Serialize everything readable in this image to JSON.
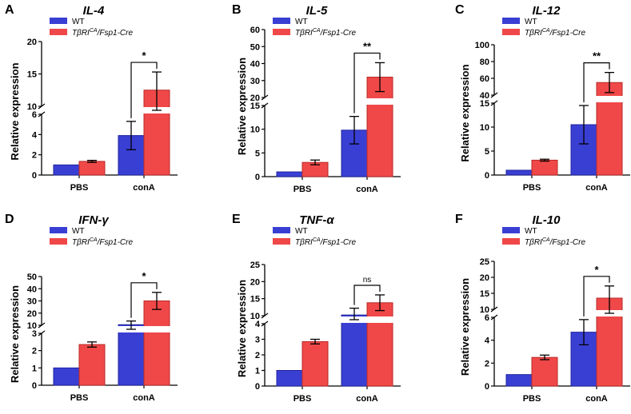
{
  "colors": {
    "wt": "#3a3fd4",
    "cre": "#f04848",
    "edge_wt": "#1f239c",
    "edge_cre": "#b82a2a"
  },
  "legend": {
    "wt_label": "WT",
    "cre_prefix": "TβRI",
    "cre_super": "CA",
    "cre_suffix": "/Fsp1-Cre"
  },
  "y_axis_label": "Relative expression",
  "chart_data": [
    {
      "panel": "A",
      "title": "IL-4",
      "type": "bar",
      "categories": [
        "PBS",
        "conA"
      ],
      "series": [
        {
          "name": "WT",
          "values": [
            1.0,
            3.9
          ],
          "errors": [
            0,
            1.4
          ]
        },
        {
          "name": "TβRICA/Fsp1-Cre",
          "values": [
            1.35,
            12.5
          ],
          "errors": [
            0.1,
            2.8
          ]
        }
      ],
      "ylabel": "Relative expression",
      "y_segments": [
        {
          "range": [
            0,
            6
          ],
          "ticks": [
            0,
            2,
            4,
            6
          ]
        },
        {
          "range": [
            10,
            20
          ],
          "ticks": [
            10,
            15,
            20
          ]
        }
      ],
      "significance": {
        "label": "*",
        "between": "conA WT vs Cre"
      }
    },
    {
      "panel": "B",
      "title": "IL-5",
      "type": "bar",
      "categories": [
        "PBS",
        "conA"
      ],
      "series": [
        {
          "name": "WT",
          "values": [
            1.0,
            9.8
          ],
          "errors": [
            0,
            2.9
          ]
        },
        {
          "name": "TβRICA/Fsp1-Cre",
          "values": [
            3.0,
            32
          ],
          "errors": [
            0.5,
            8.5
          ]
        }
      ],
      "ylabel": "Relative expression",
      "y_segments": [
        {
          "range": [
            0,
            15
          ],
          "ticks": [
            0,
            5,
            10,
            15
          ]
        },
        {
          "range": [
            20,
            60
          ],
          "ticks": [
            20,
            30,
            40,
            50,
            60
          ]
        }
      ],
      "significance": {
        "label": "**",
        "between": "conA WT vs Cre"
      }
    },
    {
      "panel": "C",
      "title": "IL-12",
      "type": "bar",
      "categories": [
        "PBS",
        "conA"
      ],
      "series": [
        {
          "name": "WT",
          "values": [
            1.0,
            10.5
          ],
          "errors": [
            0,
            4.0
          ]
        },
        {
          "name": "TβRICA/Fsp1-Cre",
          "values": [
            3.1,
            55
          ],
          "errors": [
            0.2,
            12
          ]
        }
      ],
      "ylabel": "Relative expression",
      "y_segments": [
        {
          "range": [
            0,
            15
          ],
          "ticks": [
            0,
            5,
            10,
            15
          ]
        },
        {
          "range": [
            40,
            100
          ],
          "ticks": [
            40,
            60,
            80,
            100
          ]
        }
      ],
      "significance": {
        "label": "**",
        "between": "conA WT vs Cre"
      }
    },
    {
      "panel": "D",
      "title": "IFN-γ",
      "type": "bar",
      "categories": [
        "PBS",
        "conA"
      ],
      "series": [
        {
          "name": "WT",
          "values": [
            1.0,
            10.5
          ],
          "errors": [
            0,
            3.0
          ]
        },
        {
          "name": "TβRICA/Fsp1-Cre",
          "values": [
            2.35,
            30
          ],
          "errors": [
            0.15,
            7
          ]
        }
      ],
      "ylabel": "Relative expression",
      "y_segments": [
        {
          "range": [
            0,
            3
          ],
          "ticks": [
            0,
            1,
            2,
            3
          ]
        },
        {
          "range": [
            10,
            50
          ],
          "ticks": [
            10,
            20,
            30,
            40,
            50
          ]
        }
      ],
      "significance": {
        "label": "*",
        "between": "conA WT vs Cre"
      }
    },
    {
      "panel": "E",
      "title": "TNF-α",
      "type": "bar",
      "categories": [
        "PBS",
        "conA"
      ],
      "series": [
        {
          "name": "WT",
          "values": [
            1.0,
            10.2
          ],
          "errors": [
            0,
            2.0
          ]
        },
        {
          "name": "TβRICA/Fsp1-Cre",
          "values": [
            2.85,
            13.8
          ],
          "errors": [
            0.15,
            2.3
          ]
        }
      ],
      "ylabel": "Relative expression",
      "y_segments": [
        {
          "range": [
            0,
            4
          ],
          "ticks": [
            0,
            1,
            2,
            3,
            4
          ]
        },
        {
          "range": [
            10,
            25
          ],
          "ticks": [
            10,
            15,
            20,
            25
          ]
        }
      ],
      "significance": {
        "label": "ns",
        "between": "conA WT vs Cre"
      }
    },
    {
      "panel": "F",
      "title": "IL-10",
      "type": "bar",
      "categories": [
        "PBS",
        "conA"
      ],
      "series": [
        {
          "name": "WT",
          "values": [
            1.0,
            4.7
          ],
          "errors": [
            0,
            1.1
          ]
        },
        {
          "name": "TβRICA/Fsp1-Cre",
          "values": [
            2.5,
            13.5
          ],
          "errors": [
            0.2,
            3.8
          ]
        }
      ],
      "ylabel": "Relative expression",
      "y_segments": [
        {
          "range": [
            0,
            6
          ],
          "ticks": [
            0,
            2,
            4,
            6
          ]
        },
        {
          "range": [
            10,
            25
          ],
          "ticks": [
            10,
            15,
            20,
            25
          ]
        }
      ],
      "significance": {
        "label": "*",
        "between": "conA WT vs Cre"
      }
    }
  ]
}
